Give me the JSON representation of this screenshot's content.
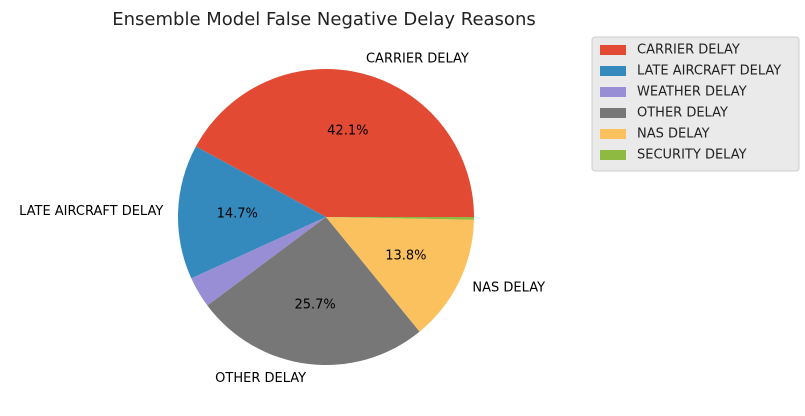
{
  "chart_data": {
    "type": "pie",
    "title": "Ensemble Model False Negative Delay Reasons",
    "start_angle_deg": 0,
    "direction": "counterclockwise",
    "slices": [
      {
        "label": "CARRIER DELAY",
        "value": 42.1,
        "pct_label": "42.1%",
        "color": "#E24A33"
      },
      {
        "label": "LATE AIRCRAFT DELAY",
        "value": 14.7,
        "pct_label": "14.7%",
        "color": "#348ABD"
      },
      {
        "label": "WEATHER DELAY",
        "value": 3.4,
        "pct_label": "",
        "color": "#988ED5"
      },
      {
        "label": "OTHER DELAY",
        "value": 25.7,
        "pct_label": "25.7%",
        "color": "#777777"
      },
      {
        "label": "NAS DELAY",
        "value": 13.8,
        "pct_label": "13.8%",
        "color": "#FBC15E"
      },
      {
        "label": "SECURITY DELAY",
        "value": 0.3,
        "pct_label": "",
        "color": "#8EBA42"
      }
    ],
    "legend": {
      "placement": "upper-right, outside plot",
      "entries": [
        "CARRIER DELAY",
        "LATE AIRCRAFT DELAY",
        "WEATHER DELAY",
        "OTHER DELAY",
        "NAS DELAY",
        "SECURITY DELAY"
      ]
    }
  }
}
